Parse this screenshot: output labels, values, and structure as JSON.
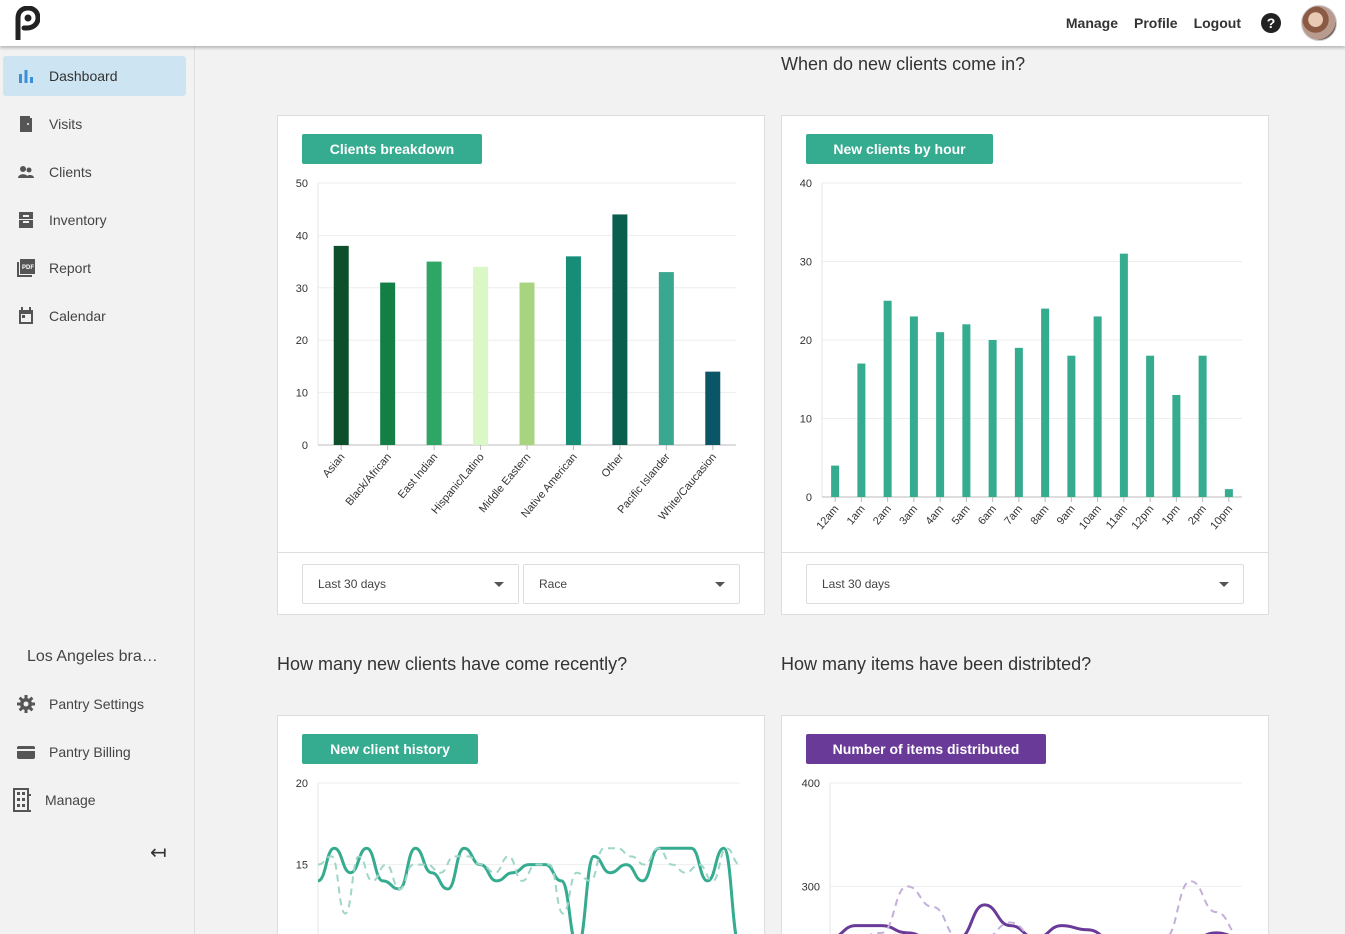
{
  "topbar": {
    "nav": [
      "Manage",
      "Profile",
      "Logout"
    ],
    "help_label": "?"
  },
  "sidebar": {
    "items": [
      {
        "label": "Dashboard",
        "icon": "bar-chart-icon",
        "active": true
      },
      {
        "label": "Visits",
        "icon": "door-icon"
      },
      {
        "label": "Clients",
        "icon": "people-icon"
      },
      {
        "label": "Inventory",
        "icon": "cabinet-icon"
      },
      {
        "label": "Report",
        "icon": "pdf-icon"
      },
      {
        "label": "Calendar",
        "icon": "calendar-icon"
      }
    ],
    "branch_name": "Los Angeles bra…",
    "bottom_items": [
      {
        "label": "Pantry Settings",
        "icon": "gear-icon"
      },
      {
        "label": "Pantry Billing",
        "icon": "wallet-icon"
      },
      {
        "label": "Manage",
        "icon": "building-icon"
      }
    ],
    "collapse_glyph": "↤"
  },
  "sections": {
    "new_clients_when": "When do new clients come in?",
    "recent_clients": "How many new clients have come recently?",
    "items_distributed": "How many items have been distribted?"
  },
  "cards": {
    "breakdown": {
      "title": "Clients breakdown",
      "range": "Last 30 days",
      "group": "Race"
    },
    "by_hour": {
      "title": "New clients by hour",
      "range": "Last 30 days"
    },
    "history": {
      "title": "New client history"
    },
    "items": {
      "title": "Number of items distributed"
    }
  },
  "chart_data": [
    {
      "type": "bar",
      "categories": [
        "Asian",
        "Black/African",
        "East Indian",
        "Hispanic/Latino",
        "Middle Eastern",
        "Native American",
        "Other",
        "Pacific Islander",
        "White/Caucasion"
      ],
      "values": [
        38,
        31,
        35,
        34,
        31,
        36,
        44,
        33,
        14
      ],
      "colors": [
        "#0d4f2a",
        "#147f45",
        "#2fa566",
        "#dbf7c5",
        "#a8d480",
        "#178d77",
        "#0a5e4e",
        "#3aa891",
        "#0a5566"
      ],
      "ylim": [
        0,
        50
      ],
      "yticks": [
        0,
        10,
        20,
        30,
        40,
        50
      ]
    },
    {
      "type": "bar",
      "categories": [
        "12am",
        "1am",
        "2am",
        "3am",
        "4am",
        "5am",
        "6am",
        "7am",
        "8am",
        "9am",
        "10am",
        "11am",
        "12pm",
        "1pm",
        "2pm",
        "10pm"
      ],
      "values": [
        4,
        17,
        25,
        23,
        21,
        22,
        20,
        19,
        24,
        18,
        23,
        31,
        18,
        13,
        18,
        1
      ],
      "color": "#35ab8f",
      "ylim": [
        0,
        40
      ],
      "yticks": [
        0,
        10,
        20,
        30,
        40
      ]
    },
    {
      "type": "line",
      "yticks_visible": [
        15,
        20
      ],
      "ylim_visible": [
        10.5,
        20
      ],
      "series": [
        {
          "style": "solid",
          "color": "#35ab8f",
          "values": [
            14,
            16,
            14.5,
            16,
            14,
            13.5,
            16,
            14.5,
            13.5,
            16,
            15,
            14,
            14.5,
            15,
            15,
            14,
            10,
            15.5,
            14.5,
            15,
            14,
            16,
            16,
            16,
            14,
            16,
            10
          ]
        },
        {
          "style": "dashed",
          "color": "#9fd6c8",
          "values": [
            15,
            15.5,
            12,
            15.5,
            14,
            15,
            13.5,
            15,
            15,
            14.5,
            15.5,
            15.5,
            15,
            14.5,
            15.5,
            14,
            15,
            15,
            12,
            14.5,
            14,
            16,
            16,
            15.5,
            15,
            16,
            15,
            14.5,
            15,
            14,
            16,
            15
          ]
        }
      ]
    },
    {
      "type": "line",
      "yticks_visible": [
        300,
        400
      ],
      "ylim_visible": [
        250,
        400
      ],
      "series": [
        {
          "style": "solid",
          "color": "#6a3a98",
          "values": [
            250,
            262,
            262,
            255,
            248,
            250,
            282,
            262,
            250,
            262,
            258,
            248,
            248,
            250,
            248,
            255,
            250
          ]
        },
        {
          "style": "dashed",
          "color": "#c3afd8",
          "values": [
            250,
            250,
            255,
            300,
            280,
            250,
            250,
            265,
            250,
            250,
            250,
            250,
            250,
            250,
            305,
            275,
            250
          ]
        }
      ]
    }
  ]
}
